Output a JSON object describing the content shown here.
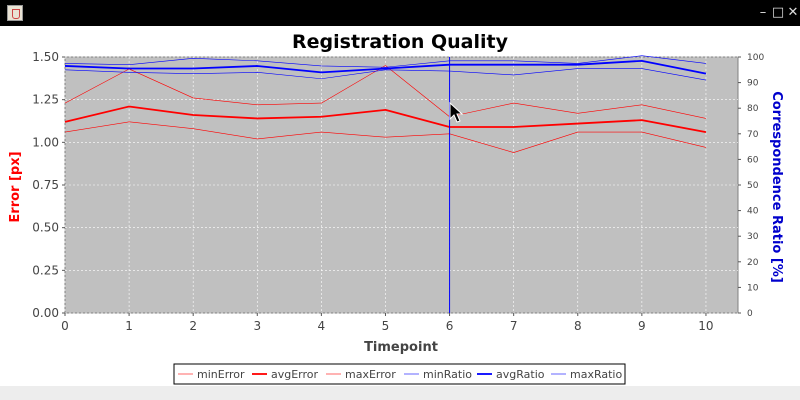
{
  "window": {
    "title": "",
    "icon": "java-cup-icon",
    "controls": [
      "minimize-icon",
      "maximize-icon",
      "close-icon"
    ]
  },
  "colors": {
    "error": "#ff0000",
    "ratio": "#0000ff",
    "plot_bg": "#c0c0c0",
    "crosshair": "#0000ff"
  },
  "chart_data": {
    "type": "line",
    "title": "Registration Quality",
    "xlabel": "Timepoint",
    "ylabel_left": "Error [px]",
    "ylabel_right": "Correspondence Ratio  [%]",
    "x": [
      0,
      1,
      2,
      3,
      4,
      5,
      6,
      7,
      8,
      9,
      10
    ],
    "xlim": [
      0,
      10.5
    ],
    "ylim_left": [
      0,
      1.5
    ],
    "ylim_right": [
      0,
      100
    ],
    "x_ticks": [
      "0",
      "1",
      "2",
      "3",
      "4",
      "5",
      "6",
      "7",
      "8",
      "9",
      "10"
    ],
    "y_ticks_left": [
      "0.00",
      "0.25",
      "0.50",
      "0.75",
      "1.00",
      "1.25",
      "1.50"
    ],
    "y_ticks_right": [
      "0",
      "10",
      "20",
      "30",
      "40",
      "50",
      "60",
      "70",
      "80",
      "90",
      "100"
    ],
    "grid": true,
    "legend_position": "bottom-center",
    "crosshair_x": 6,
    "series": [
      {
        "name": "minError",
        "axis": "left",
        "color": "#ff0000",
        "width": 0.6,
        "values": [
          1.06,
          1.12,
          1.08,
          1.02,
          1.06,
          1.03,
          1.05,
          0.94,
          1.06,
          1.06,
          0.97
        ]
      },
      {
        "name": "avgError",
        "axis": "left",
        "color": "#ff0000",
        "width": 1.8,
        "values": [
          1.12,
          1.21,
          1.16,
          1.14,
          1.15,
          1.19,
          1.09,
          1.09,
          1.11,
          1.13,
          1.06
        ]
      },
      {
        "name": "maxError",
        "axis": "left",
        "color": "#ff0000",
        "width": 0.6,
        "values": [
          1.23,
          1.43,
          1.26,
          1.22,
          1.23,
          1.45,
          1.15,
          1.23,
          1.17,
          1.22,
          1.14
        ]
      },
      {
        "name": "minRatio",
        "axis": "right",
        "color": "#0000ff",
        "width": 0.6,
        "values": [
          95,
          94,
          93.5,
          94,
          91.5,
          95,
          94.5,
          93,
          95.5,
          95.5,
          91
        ]
      },
      {
        "name": "avgRatio",
        "axis": "right",
        "color": "#0000ff",
        "width": 1.8,
        "values": [
          96.5,
          95.5,
          95.5,
          96.5,
          94,
          95.5,
          97,
          97,
          97,
          98.5,
          93.5
        ]
      },
      {
        "name": "maxRatio",
        "axis": "right",
        "color": "#0000ff",
        "width": 0.6,
        "values": [
          97.5,
          97,
          99.5,
          98.5,
          96.5,
          96,
          98.5,
          98.5,
          97.5,
          100.5,
          97.5
        ]
      }
    ]
  }
}
